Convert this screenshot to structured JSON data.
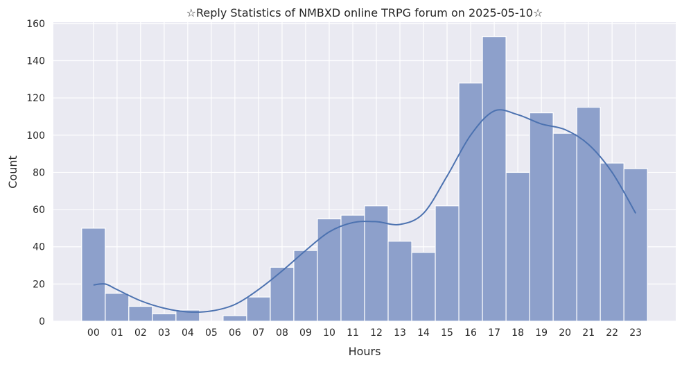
{
  "chart_data": {
    "type": "bar",
    "title": "☆Reply Statistics of NMBXD online TRPG forum on 2025-05-10☆",
    "xlabel": "Hours",
    "ylabel": "Count",
    "categories": [
      "00",
      "01",
      "02",
      "03",
      "04",
      "05",
      "06",
      "07",
      "08",
      "09",
      "10",
      "11",
      "12",
      "13",
      "14",
      "15",
      "16",
      "17",
      "18",
      "19",
      "20",
      "21",
      "22",
      "23"
    ],
    "values": [
      50,
      15,
      8,
      4,
      6,
      0,
      3,
      13,
      29,
      38,
      55,
      57,
      62,
      43,
      37,
      62,
      128,
      153,
      80,
      112,
      101,
      115,
      85,
      82
    ],
    "kde": {
      "x": [
        0,
        0.5,
        1,
        2,
        3,
        4,
        5,
        6,
        7,
        8,
        9,
        10,
        11,
        12,
        13,
        14,
        15,
        16,
        17,
        18,
        19,
        20,
        21,
        22,
        23
      ],
      "y": [
        19.5,
        20,
        17,
        11,
        7,
        5,
        5.5,
        9,
        17,
        27,
        38,
        48,
        53,
        53.5,
        52,
        58,
        78,
        100,
        113,
        111,
        106,
        103,
        95,
        80,
        58
      ]
    },
    "yticks": [
      0,
      20,
      40,
      60,
      80,
      100,
      120,
      140,
      160
    ],
    "ylim": [
      0,
      160.7
    ],
    "xlim": [
      -1.7,
      24.7
    ],
    "grid": true,
    "colors": {
      "bar": "#8da0cb",
      "line": "#4c72b0",
      "bg": "#eaeaf2"
    }
  }
}
